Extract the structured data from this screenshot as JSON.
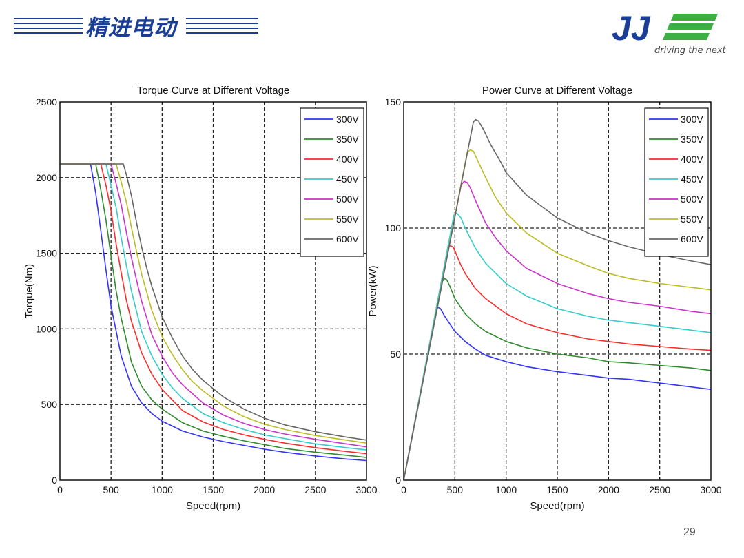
{
  "header": {
    "brand_title": "精进电动",
    "logo_text": "JJ",
    "tagline": "driving the next"
  },
  "page_number": "29",
  "colors": {
    "brand_blue": "#1a3e96",
    "brand_green": "#3cb043",
    "grid": "#222222"
  },
  "chart_data": [
    {
      "type": "line",
      "title": "Torque Curve at Different Voltage",
      "xlabel": "Speed(rpm)",
      "ylabel": "Torque(Nm)",
      "xlim": [
        0,
        3000
      ],
      "ylim": [
        0,
        2500
      ],
      "xticks": [
        0,
        500,
        1000,
        1500,
        2000,
        2500,
        3000
      ],
      "yticks": [
        0,
        500,
        1000,
        1500,
        2000,
        2500
      ],
      "grid": true,
      "legend": "top-right",
      "series": [
        {
          "name": "300V",
          "color": "#3333ff",
          "x": [
            0,
            300,
            350,
            400,
            450,
            500,
            600,
            700,
            800,
            900,
            1000,
            1200,
            1400,
            1600,
            1800,
            2000,
            2200,
            2500,
            2800,
            3000
          ],
          "y": [
            2090,
            2090,
            1900,
            1650,
            1390,
            1150,
            820,
            620,
            510,
            440,
            390,
            325,
            285,
            255,
            230,
            205,
            185,
            160,
            140,
            130
          ]
        },
        {
          "name": "350V",
          "color": "#2e8b2e",
          "x": [
            0,
            350,
            400,
            450,
            500,
            550,
            600,
            700,
            800,
            900,
            1000,
            1200,
            1400,
            1600,
            1800,
            2000,
            2200,
            2500,
            2800,
            3000
          ],
          "y": [
            2090,
            2090,
            1920,
            1720,
            1480,
            1250,
            1070,
            780,
            620,
            530,
            470,
            380,
            325,
            290,
            260,
            235,
            210,
            185,
            165,
            150
          ]
        },
        {
          "name": "400V",
          "color": "#ff2a2a",
          "x": [
            0,
            400,
            450,
            500,
            550,
            600,
            650,
            700,
            800,
            900,
            1000,
            1200,
            1400,
            1600,
            1800,
            2000,
            2200,
            2500,
            2800,
            3000
          ],
          "y": [
            2090,
            2090,
            1950,
            1780,
            1560,
            1370,
            1190,
            1050,
            840,
            700,
            600,
            460,
            385,
            335,
            300,
            270,
            245,
            215,
            190,
            175
          ]
        },
        {
          "name": "450V",
          "color": "#33cccc",
          "x": [
            0,
            450,
            500,
            550,
            600,
            650,
            700,
            800,
            900,
            1000,
            1100,
            1200,
            1400,
            1600,
            1800,
            2000,
            2200,
            2500,
            2800,
            3000
          ],
          "y": [
            2090,
            2090,
            1950,
            1800,
            1600,
            1420,
            1250,
            980,
            820,
            700,
            610,
            540,
            440,
            380,
            335,
            300,
            275,
            240,
            215,
            200
          ]
        },
        {
          "name": "500V",
          "color": "#cc33cc",
          "x": [
            0,
            500,
            550,
            600,
            650,
            700,
            750,
            800,
            900,
            1000,
            1100,
            1200,
            1400,
            1600,
            1800,
            2000,
            2200,
            2500,
            2800,
            3000
          ],
          "y": [
            2090,
            2090,
            1960,
            1820,
            1640,
            1470,
            1320,
            1180,
            960,
            820,
            710,
            630,
            510,
            430,
            375,
            335,
            305,
            270,
            240,
            220
          ]
        },
        {
          "name": "550V",
          "color": "#bbbb22",
          "x": [
            0,
            550,
            600,
            650,
            700,
            750,
            800,
            900,
            1000,
            1100,
            1200,
            1300,
            1400,
            1600,
            1800,
            2000,
            2200,
            2500,
            2800,
            3000
          ],
          "y": [
            2090,
            2090,
            1970,
            1840,
            1670,
            1510,
            1360,
            1120,
            950,
            830,
            730,
            650,
            590,
            490,
            420,
            370,
            335,
            295,
            265,
            245
          ]
        },
        {
          "name": "600V",
          "color": "#666666",
          "x": [
            0,
            620,
            650,
            700,
            750,
            800,
            850,
            900,
            1000,
            1100,
            1200,
            1300,
            1400,
            1600,
            1800,
            2000,
            2200,
            2500,
            2800,
            3000
          ],
          "y": [
            2090,
            2090,
            2020,
            1880,
            1700,
            1540,
            1400,
            1280,
            1080,
            940,
            820,
            730,
            660,
            550,
            470,
            410,
            365,
            320,
            285,
            265
          ]
        }
      ]
    },
    {
      "type": "line",
      "title": "Power Curve at Different Voltage",
      "xlabel": "Speed(rpm)",
      "ylabel": "Power(kW)",
      "xlim": [
        0,
        3000
      ],
      "ylim": [
        0,
        150
      ],
      "xticks": [
        0,
        500,
        1000,
        1500,
        2000,
        2500,
        3000
      ],
      "yticks": [
        0,
        50,
        100,
        150
      ],
      "grid": true,
      "legend": "top-right",
      "series": [
        {
          "name": "300V",
          "color": "#3333ff",
          "x": [
            0,
            320,
            340,
            360,
            400,
            500,
            600,
            700,
            800,
            1000,
            1200,
            1500,
            1800,
            2000,
            2200,
            2500,
            2800,
            3000
          ],
          "y": [
            0,
            68,
            68.5,
            68,
            65,
            59,
            55,
            52,
            49.5,
            47,
            45,
            43,
            41.5,
            40.5,
            40,
            38.5,
            37,
            36
          ]
        },
        {
          "name": "350V",
          "color": "#2e8b2e",
          "x": [
            0,
            380,
            400,
            420,
            450,
            500,
            600,
            700,
            800,
            1000,
            1200,
            1500,
            1800,
            2000,
            2200,
            2500,
            2800,
            3000
          ],
          "y": [
            0,
            79,
            80,
            79.5,
            77,
            72,
            66,
            62,
            59,
            55,
            52.5,
            50,
            48.5,
            47,
            46.5,
            45.5,
            44.5,
            43.5
          ]
        },
        {
          "name": "400V",
          "color": "#ff2a2a",
          "x": [
            0,
            430,
            450,
            480,
            500,
            550,
            600,
            700,
            800,
            1000,
            1200,
            1500,
            1800,
            2000,
            2200,
            2500,
            2800,
            3000
          ],
          "y": [
            0,
            92,
            93,
            92.5,
            91,
            86,
            82,
            76,
            72,
            66,
            62,
            58.5,
            56,
            55,
            54,
            53,
            52,
            51.5
          ]
        },
        {
          "name": "450V",
          "color": "#33cccc",
          "x": [
            0,
            490,
            510,
            530,
            560,
            600,
            700,
            800,
            1000,
            1200,
            1500,
            1800,
            2000,
            2200,
            2500,
            2800,
            3000
          ],
          "y": [
            0,
            105,
            106,
            105.5,
            104,
            100,
            92,
            86,
            78,
            73,
            68,
            65,
            63.5,
            62.5,
            61,
            59.5,
            58.5
          ]
        },
        {
          "name": "500V",
          "color": "#cc33cc",
          "x": [
            0,
            560,
            590,
            620,
            650,
            700,
            800,
            900,
            1000,
            1200,
            1500,
            1800,
            2000,
            2200,
            2500,
            2800,
            3000
          ],
          "y": [
            0,
            117,
            118.5,
            118,
            116,
            111,
            102,
            96,
            91,
            84,
            78,
            74,
            72,
            70.5,
            69,
            67,
            66
          ]
        },
        {
          "name": "550V",
          "color": "#bbbb22",
          "x": [
            0,
            620,
            650,
            680,
            720,
            800,
            900,
            1000,
            1200,
            1500,
            1800,
            2000,
            2200,
            2500,
            2800,
            3000
          ],
          "y": [
            0,
            130,
            131,
            130.5,
            127,
            120,
            112,
            106,
            98,
            90,
            85,
            82,
            80,
            78,
            76.5,
            75.5
          ]
        },
        {
          "name": "600V",
          "color": "#666666",
          "x": [
            0,
            680,
            700,
            730,
            780,
            850,
            950,
            1000,
            1200,
            1500,
            1800,
            2000,
            2200,
            2500,
            2800,
            3000
          ],
          "y": [
            0,
            142,
            143,
            142.5,
            139,
            133,
            126,
            122,
            113,
            104,
            98,
            95,
            92.5,
            89.5,
            87,
            85.5
          ]
        }
      ]
    }
  ]
}
